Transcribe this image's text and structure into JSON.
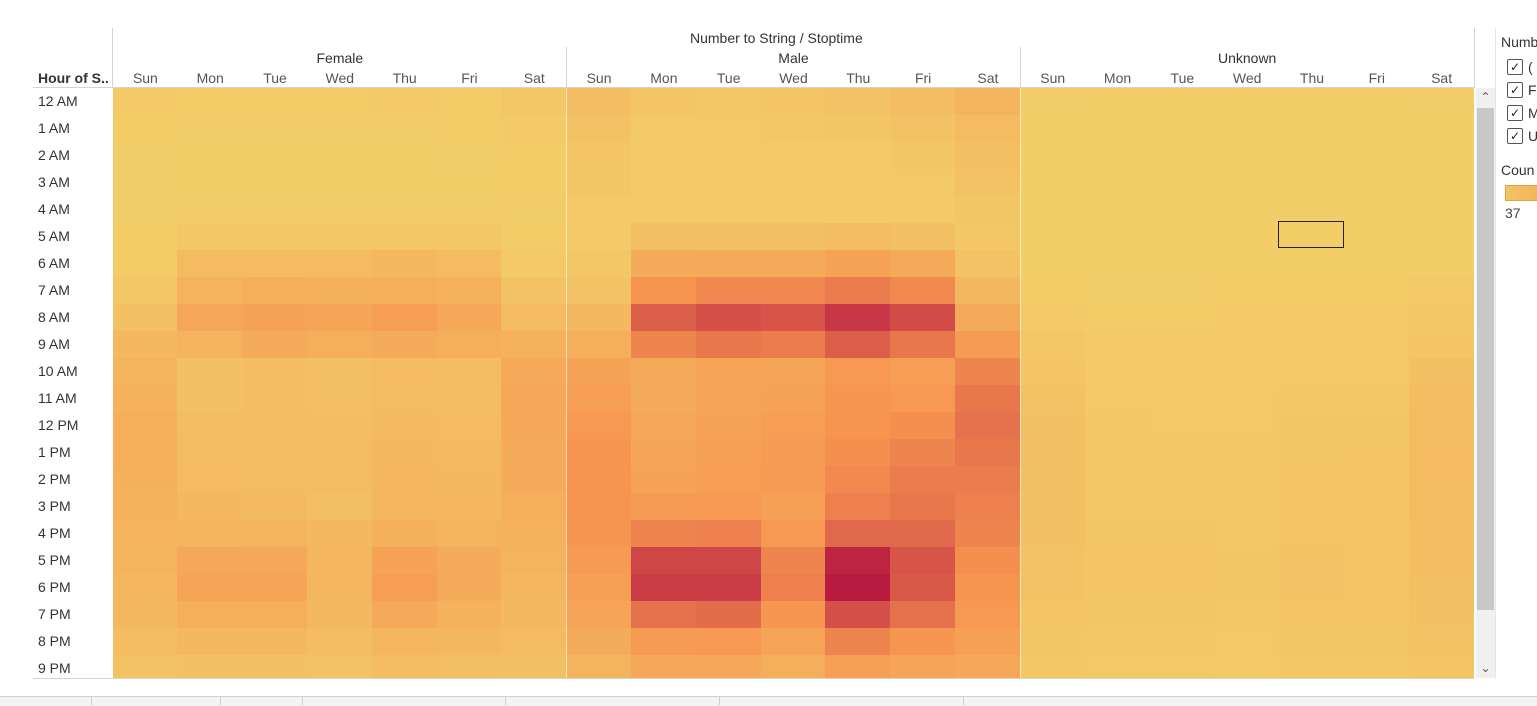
{
  "header": {
    "title": "Number to String / Stoptime",
    "row_header": "Hour of S.."
  },
  "legend": {
    "title": "Numb",
    "items": [
      {
        "label": "(",
        "checked": true
      },
      {
        "label": "F",
        "checked": true
      },
      {
        "label": "M",
        "checked": true
      },
      {
        "label": "U",
        "checked": true
      }
    ],
    "color_title": "Coun",
    "color_min": "37"
  },
  "chart_data": {
    "type": "heatmap",
    "title": "Number to String / Stoptime",
    "ylabel": "Hour of S..",
    "groups": [
      "Female",
      "Male",
      "Unknown"
    ],
    "days": [
      "Sun",
      "Mon",
      "Tue",
      "Wed",
      "Thu",
      "Fri",
      "Sat"
    ],
    "hours": [
      "12 AM",
      "1 AM",
      "2 AM",
      "3 AM",
      "4 AM",
      "5 AM",
      "6 AM",
      "7 AM",
      "8 AM",
      "9 AM",
      "10 AM",
      "11 AM",
      "12 PM",
      "1 PM",
      "2 PM",
      "3 PM",
      "4 PM",
      "5 PM",
      "6 PM",
      "7 PM",
      "8 PM",
      "9 PM"
    ],
    "color_scale": {
      "low": "#F2D16A",
      "mid": "#F79450",
      "high": "#B81A41"
    },
    "values": {
      "Female": [
        [
          0.06,
          0.05,
          0.05,
          0.05,
          0.06,
          0.05,
          0.08
        ],
        [
          0.05,
          0.04,
          0.04,
          0.04,
          0.04,
          0.05,
          0.06
        ],
        [
          0.04,
          0.03,
          0.03,
          0.03,
          0.03,
          0.04,
          0.05
        ],
        [
          0.04,
          0.03,
          0.03,
          0.03,
          0.03,
          0.03,
          0.05
        ],
        [
          0.04,
          0.04,
          0.04,
          0.04,
          0.04,
          0.04,
          0.04
        ],
        [
          0.05,
          0.08,
          0.08,
          0.08,
          0.08,
          0.08,
          0.05
        ],
        [
          0.05,
          0.18,
          0.18,
          0.18,
          0.2,
          0.18,
          0.06
        ],
        [
          0.08,
          0.25,
          0.28,
          0.27,
          0.28,
          0.26,
          0.12
        ],
        [
          0.14,
          0.35,
          0.38,
          0.36,
          0.42,
          0.34,
          0.18
        ],
        [
          0.2,
          0.25,
          0.3,
          0.28,
          0.3,
          0.28,
          0.26
        ],
        [
          0.24,
          0.14,
          0.16,
          0.15,
          0.18,
          0.16,
          0.32
        ],
        [
          0.26,
          0.14,
          0.16,
          0.15,
          0.17,
          0.16,
          0.34
        ],
        [
          0.28,
          0.16,
          0.16,
          0.16,
          0.19,
          0.18,
          0.34
        ],
        [
          0.28,
          0.17,
          0.16,
          0.16,
          0.2,
          0.19,
          0.3
        ],
        [
          0.27,
          0.18,
          0.17,
          0.17,
          0.21,
          0.2,
          0.3
        ],
        [
          0.26,
          0.2,
          0.19,
          0.15,
          0.22,
          0.22,
          0.28
        ],
        [
          0.25,
          0.23,
          0.24,
          0.2,
          0.27,
          0.24,
          0.26
        ],
        [
          0.24,
          0.34,
          0.34,
          0.22,
          0.38,
          0.3,
          0.24
        ],
        [
          0.22,
          0.36,
          0.36,
          0.22,
          0.42,
          0.3,
          0.22
        ],
        [
          0.2,
          0.28,
          0.28,
          0.2,
          0.32,
          0.26,
          0.2
        ],
        [
          0.16,
          0.2,
          0.2,
          0.16,
          0.22,
          0.2,
          0.18
        ],
        [
          0.12,
          0.14,
          0.14,
          0.12,
          0.16,
          0.15,
          0.14
        ]
      ],
      "Male": [
        [
          0.16,
          0.1,
          0.08,
          0.1,
          0.12,
          0.16,
          0.24
        ],
        [
          0.12,
          0.07,
          0.07,
          0.08,
          0.09,
          0.12,
          0.18
        ],
        [
          0.1,
          0.06,
          0.06,
          0.06,
          0.07,
          0.09,
          0.15
        ],
        [
          0.09,
          0.06,
          0.06,
          0.06,
          0.06,
          0.07,
          0.12
        ],
        [
          0.07,
          0.06,
          0.06,
          0.06,
          0.06,
          0.06,
          0.09
        ],
        [
          0.06,
          0.14,
          0.14,
          0.14,
          0.16,
          0.14,
          0.08
        ],
        [
          0.08,
          0.3,
          0.32,
          0.32,
          0.38,
          0.32,
          0.12
        ],
        [
          0.12,
          0.5,
          0.55,
          0.55,
          0.6,
          0.54,
          0.2
        ],
        [
          0.2,
          0.72,
          0.78,
          0.76,
          0.88,
          0.8,
          0.32
        ],
        [
          0.28,
          0.56,
          0.62,
          0.6,
          0.72,
          0.62,
          0.44
        ],
        [
          0.38,
          0.32,
          0.36,
          0.36,
          0.46,
          0.42,
          0.56
        ],
        [
          0.42,
          0.3,
          0.36,
          0.38,
          0.48,
          0.46,
          0.62
        ],
        [
          0.46,
          0.34,
          0.38,
          0.42,
          0.5,
          0.52,
          0.64
        ],
        [
          0.5,
          0.36,
          0.4,
          0.44,
          0.52,
          0.56,
          0.62
        ],
        [
          0.5,
          0.38,
          0.42,
          0.44,
          0.54,
          0.6,
          0.6
        ],
        [
          0.5,
          0.44,
          0.46,
          0.4,
          0.58,
          0.62,
          0.58
        ],
        [
          0.48,
          0.56,
          0.58,
          0.46,
          0.68,
          0.68,
          0.56
        ],
        [
          0.44,
          0.82,
          0.82,
          0.56,
          0.96,
          0.76,
          0.52
        ],
        [
          0.4,
          0.86,
          0.86,
          0.58,
          1.0,
          0.74,
          0.5
        ],
        [
          0.36,
          0.64,
          0.66,
          0.48,
          0.78,
          0.64,
          0.46
        ],
        [
          0.3,
          0.44,
          0.46,
          0.36,
          0.56,
          0.48,
          0.4
        ],
        [
          0.24,
          0.34,
          0.34,
          0.28,
          0.4,
          0.36,
          0.34
        ]
      ],
      "Unknown": [
        [
          0.04,
          0.03,
          0.03,
          0.03,
          0.03,
          0.03,
          0.04
        ],
        [
          0.03,
          0.03,
          0.03,
          0.03,
          0.03,
          0.03,
          0.03
        ],
        [
          0.03,
          0.03,
          0.03,
          0.03,
          0.03,
          0.03,
          0.03
        ],
        [
          0.03,
          0.03,
          0.03,
          0.03,
          0.03,
          0.03,
          0.03
        ],
        [
          0.03,
          0.03,
          0.03,
          0.03,
          0.03,
          0.03,
          0.03
        ],
        [
          0.03,
          0.03,
          0.03,
          0.03,
          0.03,
          0.03,
          0.03
        ],
        [
          0.03,
          0.03,
          0.03,
          0.03,
          0.03,
          0.03,
          0.03
        ],
        [
          0.05,
          0.04,
          0.04,
          0.05,
          0.05,
          0.05,
          0.06
        ],
        [
          0.06,
          0.05,
          0.05,
          0.06,
          0.06,
          0.06,
          0.08
        ],
        [
          0.08,
          0.06,
          0.06,
          0.06,
          0.07,
          0.07,
          0.1
        ],
        [
          0.1,
          0.06,
          0.06,
          0.06,
          0.07,
          0.07,
          0.14
        ],
        [
          0.12,
          0.07,
          0.07,
          0.07,
          0.08,
          0.08,
          0.16
        ],
        [
          0.13,
          0.08,
          0.07,
          0.07,
          0.09,
          0.09,
          0.17
        ],
        [
          0.14,
          0.08,
          0.08,
          0.08,
          0.09,
          0.1,
          0.18
        ],
        [
          0.14,
          0.08,
          0.08,
          0.08,
          0.1,
          0.1,
          0.18
        ],
        [
          0.14,
          0.08,
          0.08,
          0.08,
          0.1,
          0.1,
          0.17
        ],
        [
          0.13,
          0.09,
          0.09,
          0.08,
          0.11,
          0.1,
          0.16
        ],
        [
          0.12,
          0.1,
          0.1,
          0.09,
          0.12,
          0.11,
          0.16
        ],
        [
          0.12,
          0.1,
          0.1,
          0.09,
          0.12,
          0.11,
          0.15
        ],
        [
          0.1,
          0.09,
          0.09,
          0.08,
          0.11,
          0.1,
          0.14
        ],
        [
          0.09,
          0.08,
          0.08,
          0.07,
          0.09,
          0.09,
          0.12
        ],
        [
          0.08,
          0.07,
          0.07,
          0.06,
          0.08,
          0.08,
          0.1
        ]
      ]
    }
  }
}
